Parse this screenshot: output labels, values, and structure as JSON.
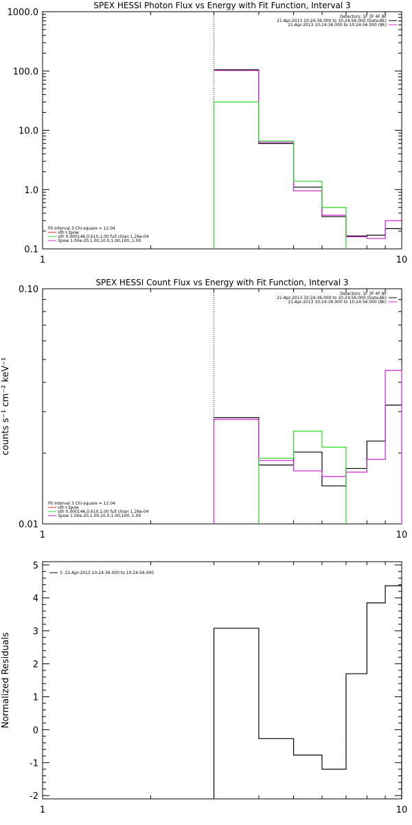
{
  "colors": {
    "black": "#000000",
    "magenta": "#d21ed2",
    "green": "#22dd22",
    "red": "#dd2222"
  },
  "chart_data": [
    {
      "type": "line",
      "title": "SPEX HESSI Photon Flux vs Energy with Fit Function, Interval 3",
      "xlabel": "",
      "ylabel": "",
      "x_scale": "log",
      "y_scale": "log",
      "xlim": [
        1,
        10
      ],
      "ylim": [
        0.1,
        1000
      ],
      "x_ticks": [
        {
          "value": 1,
          "label": "1"
        },
        {
          "value": 10,
          "label": "10"
        }
      ],
      "y_ticks": [
        {
          "value": 0.1,
          "label": "0.1"
        },
        {
          "value": 1,
          "label": "1.0"
        },
        {
          "value": 10,
          "label": "10.0"
        },
        {
          "value": 100,
          "label": "100.0"
        },
        {
          "value": 1000,
          "label": "1000.0"
        }
      ],
      "vline": 3,
      "info_lines": [
        "Detectors: 1F 3F 4F 8F",
        "21-Apr-2013 10:24:36.000 to 10:24:56.000 (Data-Bk)",
        "21-Apr-2013 10:24:36.000 to 10:24:56.000 (Bk)"
      ],
      "fit_lines": [
        "Fit Interval 3   Chi-square = 12.04",
        "vth+3pow",
        "vth 0.000146,0.610,1.00  full chian 1.26e-04",
        "3pow 1.00e-20,1.00,10.0,1.00,100.,1.00"
      ],
      "series": [
        {
          "name": "black",
          "color": "#000000",
          "edges": [
            3,
            4,
            5,
            6,
            7,
            8,
            9,
            10
          ],
          "values": [
            105,
            6.0,
            1.1,
            0.35,
            0.165,
            0.17,
            0.22
          ]
        },
        {
          "name": "magenta",
          "color": "#d21ed2",
          "edges": [
            3,
            4,
            5,
            6,
            7,
            8,
            9,
            10
          ],
          "values": [
            102,
            6.3,
            0.95,
            0.37,
            0.16,
            0.15,
            0.3
          ]
        },
        {
          "name": "green",
          "color": "#22dd22",
          "edges": [
            3,
            4,
            5,
            6,
            7
          ],
          "values": [
            30,
            6.6,
            1.38,
            0.5
          ],
          "drop_ends": true
        }
      ]
    },
    {
      "type": "line",
      "title": "SPEX HESSI Count Flux vs Energy with Fit Function, Interval 3",
      "xlabel": "",
      "ylabel": "counts s⁻¹ cm⁻² keV⁻¹",
      "x_scale": "log",
      "y_scale": "log",
      "xlim": [
        1,
        10
      ],
      "ylim": [
        0.01,
        0.1
      ],
      "x_ticks": [
        {
          "value": 1,
          "label": "1"
        },
        {
          "value": 10,
          "label": "10"
        }
      ],
      "y_ticks": [
        {
          "value": 0.01,
          "label": "0.01"
        },
        {
          "value": 0.1,
          "label": "0.10"
        }
      ],
      "vline": 3,
      "info_lines": [
        "Detectors: 1F 3F 4F 8F",
        "21-Apr-2013 10:24:36.000 to 10:24:56.000 (Data-Bk)",
        "21-Apr-2013 10:24:36.000 to 10:24:56.000 (Bk)"
      ],
      "fit_lines": [
        "Fit Interval 3   Chi-square = 12.04",
        "vth+3pow",
        "vth 0.000146,0.610,1.00  full chian 1.26e-04",
        "3pow 1.00e-20,1.00,10.0,1.00,100.,1.00"
      ],
      "series": [
        {
          "name": "black",
          "color": "#000000",
          "edges": [
            3,
            4,
            5,
            6,
            7,
            8,
            9,
            10
          ],
          "values": [
            0.0283,
            0.0178,
            0.0202,
            0.0145,
            0.0172,
            0.0225,
            0.032
          ]
        },
        {
          "name": "magenta",
          "color": "#d21ed2",
          "edges": [
            3,
            4,
            5,
            6,
            7,
            8,
            9,
            10
          ],
          "values": [
            0.0278,
            0.0186,
            0.0168,
            0.0159,
            0.0166,
            0.0188,
            0.045
          ],
          "drop_ends": true
        },
        {
          "name": "green",
          "color": "#22dd22",
          "edges": [
            4,
            5,
            6,
            7
          ],
          "values": [
            0.019,
            0.0248,
            0.0212
          ],
          "drop_ends": true
        }
      ]
    },
    {
      "type": "line",
      "title": "",
      "xlabel": "",
      "ylabel": "Normalized Residuals",
      "x_scale": "log",
      "y_scale": "linear",
      "xlim": [
        1,
        10
      ],
      "ylim": [
        -2.1,
        5.1
      ],
      "x_ticks": [
        {
          "value": 1,
          "label": "1"
        },
        {
          "value": 10,
          "label": "10"
        }
      ],
      "y_ticks": [
        {
          "value": -2,
          "label": "-2"
        },
        {
          "value": -1,
          "label": "-1"
        },
        {
          "value": 0,
          "label": "0"
        },
        {
          "value": 1,
          "label": "1"
        },
        {
          "value": 2,
          "label": "2"
        },
        {
          "value": 3,
          "label": "3"
        },
        {
          "value": 4,
          "label": "4"
        },
        {
          "value": 5,
          "label": "5"
        }
      ],
      "legend": "3. 21-Apr-2013 10:24:36.000 to 10:24:56.000",
      "series": [
        {
          "name": "residuals",
          "color": "#000000",
          "edges": [
            3,
            4,
            5,
            6,
            7,
            8,
            9,
            10
          ],
          "values": [
            3.08,
            -0.27,
            -0.77,
            -1.2,
            1.7,
            3.85,
            4.37
          ],
          "drop_ends": true,
          "bottom": -2.1
        }
      ]
    }
  ]
}
